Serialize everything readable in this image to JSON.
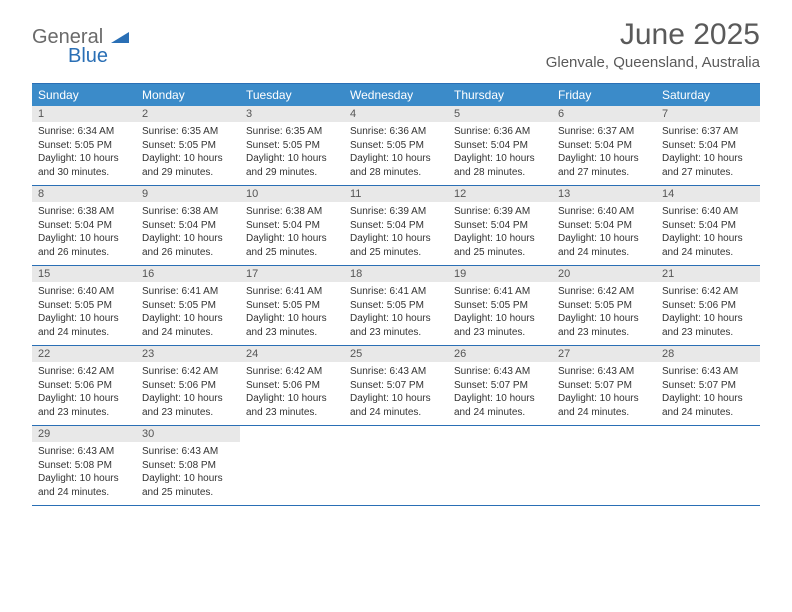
{
  "brand": {
    "line1": "General",
    "line2": "Blue"
  },
  "title": "June 2025",
  "location": "Glenvale, Queensland, Australia",
  "colors": {
    "header_bg": "#3b8bc9",
    "border": "#2a6fb5",
    "daynum_bg": "#e8e8e8",
    "text": "#333333",
    "title": "#5a5a5a"
  },
  "day_names": [
    "Sunday",
    "Monday",
    "Tuesday",
    "Wednesday",
    "Thursday",
    "Friday",
    "Saturday"
  ],
  "days": [
    {
      "n": 1,
      "sunrise": "6:34 AM",
      "sunset": "5:05 PM",
      "dl": "10 hours and 30 minutes."
    },
    {
      "n": 2,
      "sunrise": "6:35 AM",
      "sunset": "5:05 PM",
      "dl": "10 hours and 29 minutes."
    },
    {
      "n": 3,
      "sunrise": "6:35 AM",
      "sunset": "5:05 PM",
      "dl": "10 hours and 29 minutes."
    },
    {
      "n": 4,
      "sunrise": "6:36 AM",
      "sunset": "5:05 PM",
      "dl": "10 hours and 28 minutes."
    },
    {
      "n": 5,
      "sunrise": "6:36 AM",
      "sunset": "5:04 PM",
      "dl": "10 hours and 28 minutes."
    },
    {
      "n": 6,
      "sunrise": "6:37 AM",
      "sunset": "5:04 PM",
      "dl": "10 hours and 27 minutes."
    },
    {
      "n": 7,
      "sunrise": "6:37 AM",
      "sunset": "5:04 PM",
      "dl": "10 hours and 27 minutes."
    },
    {
      "n": 8,
      "sunrise": "6:38 AM",
      "sunset": "5:04 PM",
      "dl": "10 hours and 26 minutes."
    },
    {
      "n": 9,
      "sunrise": "6:38 AM",
      "sunset": "5:04 PM",
      "dl": "10 hours and 26 minutes."
    },
    {
      "n": 10,
      "sunrise": "6:38 AM",
      "sunset": "5:04 PM",
      "dl": "10 hours and 25 minutes."
    },
    {
      "n": 11,
      "sunrise": "6:39 AM",
      "sunset": "5:04 PM",
      "dl": "10 hours and 25 minutes."
    },
    {
      "n": 12,
      "sunrise": "6:39 AM",
      "sunset": "5:04 PM",
      "dl": "10 hours and 25 minutes."
    },
    {
      "n": 13,
      "sunrise": "6:40 AM",
      "sunset": "5:04 PM",
      "dl": "10 hours and 24 minutes."
    },
    {
      "n": 14,
      "sunrise": "6:40 AM",
      "sunset": "5:04 PM",
      "dl": "10 hours and 24 minutes."
    },
    {
      "n": 15,
      "sunrise": "6:40 AM",
      "sunset": "5:05 PM",
      "dl": "10 hours and 24 minutes."
    },
    {
      "n": 16,
      "sunrise": "6:41 AM",
      "sunset": "5:05 PM",
      "dl": "10 hours and 24 minutes."
    },
    {
      "n": 17,
      "sunrise": "6:41 AM",
      "sunset": "5:05 PM",
      "dl": "10 hours and 23 minutes."
    },
    {
      "n": 18,
      "sunrise": "6:41 AM",
      "sunset": "5:05 PM",
      "dl": "10 hours and 23 minutes."
    },
    {
      "n": 19,
      "sunrise": "6:41 AM",
      "sunset": "5:05 PM",
      "dl": "10 hours and 23 minutes."
    },
    {
      "n": 20,
      "sunrise": "6:42 AM",
      "sunset": "5:05 PM",
      "dl": "10 hours and 23 minutes."
    },
    {
      "n": 21,
      "sunrise": "6:42 AM",
      "sunset": "5:06 PM",
      "dl": "10 hours and 23 minutes."
    },
    {
      "n": 22,
      "sunrise": "6:42 AM",
      "sunset": "5:06 PM",
      "dl": "10 hours and 23 minutes."
    },
    {
      "n": 23,
      "sunrise": "6:42 AM",
      "sunset": "5:06 PM",
      "dl": "10 hours and 23 minutes."
    },
    {
      "n": 24,
      "sunrise": "6:42 AM",
      "sunset": "5:06 PM",
      "dl": "10 hours and 23 minutes."
    },
    {
      "n": 25,
      "sunrise": "6:43 AM",
      "sunset": "5:07 PM",
      "dl": "10 hours and 24 minutes."
    },
    {
      "n": 26,
      "sunrise": "6:43 AM",
      "sunset": "5:07 PM",
      "dl": "10 hours and 24 minutes."
    },
    {
      "n": 27,
      "sunrise": "6:43 AM",
      "sunset": "5:07 PM",
      "dl": "10 hours and 24 minutes."
    },
    {
      "n": 28,
      "sunrise": "6:43 AM",
      "sunset": "5:07 PM",
      "dl": "10 hours and 24 minutes."
    },
    {
      "n": 29,
      "sunrise": "6:43 AM",
      "sunset": "5:08 PM",
      "dl": "10 hours and 24 minutes."
    },
    {
      "n": 30,
      "sunrise": "6:43 AM",
      "sunset": "5:08 PM",
      "dl": "10 hours and 25 minutes."
    }
  ],
  "labels": {
    "sunrise": "Sunrise: ",
    "sunset": "Sunset: ",
    "daylight": "Daylight: "
  },
  "start_weekday": 0,
  "weeks": 5
}
